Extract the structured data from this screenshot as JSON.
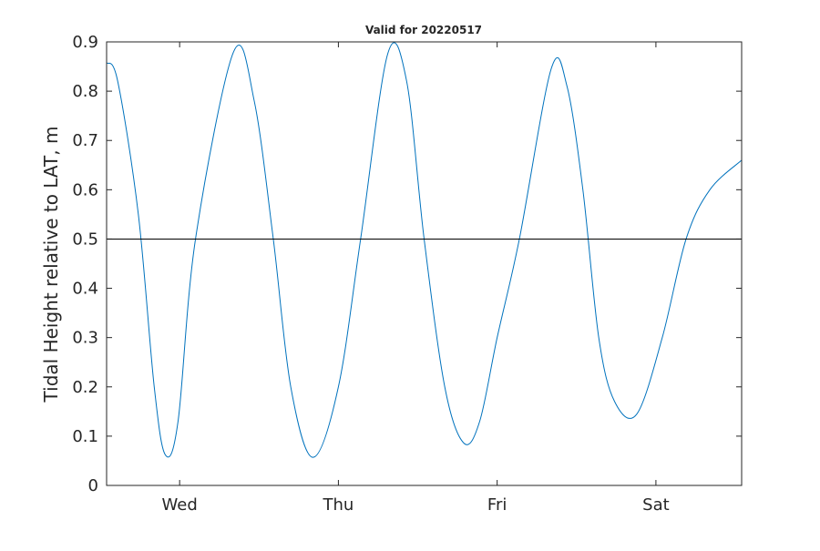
{
  "chart_data": {
    "type": "line",
    "title": "Valid for 20220517",
    "xlabel": "",
    "ylabel": "Tidal Height relative to LAT, m",
    "ylim": [
      0,
      0.9
    ],
    "yticks": [
      "0",
      "0.1",
      "0.2",
      "0.3",
      "0.4",
      "0.5",
      "0.6",
      "0.7",
      "0.8",
      "0.9"
    ],
    "xticks": [
      {
        "label": "Wed",
        "x": 0.46
      },
      {
        "label": "Thu",
        "x": 1.46
      },
      {
        "label": "Fri",
        "x": 2.46
      },
      {
        "label": "Sat",
        "x": 3.46
      }
    ],
    "xlim": [
      0,
      4.0
    ],
    "reference_line": {
      "y": 0.5,
      "color": "#000000"
    },
    "series": [
      {
        "color": "#0072BD",
        "x": [
          0.0,
          0.07,
          0.2,
          0.3,
          0.37,
          0.45,
          0.56,
          0.8,
          0.93,
          1.05,
          1.16,
          1.3,
          1.46,
          1.6,
          1.77,
          1.89,
          2.0,
          2.13,
          2.25,
          2.35,
          2.46,
          2.6,
          2.8,
          2.9,
          3.0,
          3.1,
          3.2,
          3.34,
          3.5,
          3.65,
          3.8,
          4.0
        ],
        "y": [
          0.858,
          0.82,
          0.55,
          0.2,
          0.062,
          0.13,
          0.5,
          0.88,
          0.78,
          0.5,
          0.2,
          0.057,
          0.2,
          0.5,
          0.875,
          0.82,
          0.5,
          0.2,
          0.086,
          0.13,
          0.3,
          0.5,
          0.845,
          0.81,
          0.6,
          0.3,
          0.17,
          0.145,
          0.3,
          0.5,
          0.6,
          0.66
        ]
      }
    ],
    "grid": false,
    "legend": "none"
  }
}
